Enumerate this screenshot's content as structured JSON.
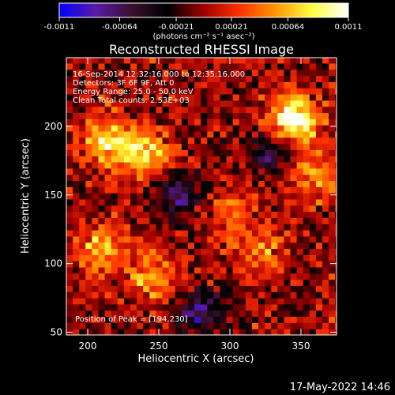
{
  "chart_data": {
    "type": "heatmap",
    "title": "Reconstructed RHESSI Image",
    "xlabel": "Heliocentric X (arcsec)",
    "ylabel": "Heliocentric Y (arcsec)",
    "xlim": [
      185,
      375
    ],
    "ylim": [
      48,
      250
    ],
    "x_ticks": [
      200,
      250,
      300,
      350
    ],
    "y_ticks": [
      50,
      100,
      150,
      200
    ],
    "info_lines": [
      "16-Sep-2014 12:32:16.000 to 12:35:16.000",
      "Detectors: 3F 6F 9F, Att 0",
      "Energy Range: 25.0 - 50.0 keV",
      "Clean     Total counts: 2.53E+03"
    ],
    "peak_label": "Position of Peak = [194,230]",
    "colorbar": {
      "range": [
        -0.0011,
        0.0011
      ],
      "ticks": [
        "-0.0011",
        "-0.00064",
        "-0.00021",
        "0.00021",
        "0.00064",
        "0.0011"
      ],
      "units": "(photons cm⁻² s⁻¹ asec⁻²)",
      "colors": [
        "#0000ff",
        "#5a1aa8",
        "#3a1030",
        "#000000",
        "#a00000",
        "#ff3300",
        "#ff9900",
        "#ffff44",
        "#ffffff"
      ]
    },
    "features": [
      {
        "x": 345,
        "y": 205,
        "value": 0.0011
      },
      {
        "x": 215,
        "y": 190,
        "value": 0.0008
      },
      {
        "x": 240,
        "y": 180,
        "value": 0.0007
      },
      {
        "x": 360,
        "y": 165,
        "value": 0.0006
      },
      {
        "x": 210,
        "y": 110,
        "value": 0.0007
      },
      {
        "x": 245,
        "y": 90,
        "value": 0.0006
      },
      {
        "x": 320,
        "y": 110,
        "value": 0.0005
      },
      {
        "x": 300,
        "y": 140,
        "value": 0.0004
      },
      {
        "x": 265,
        "y": 150,
        "value": -0.0006
      },
      {
        "x": 280,
        "y": 65,
        "value": -0.0007
      },
      {
        "x": 330,
        "y": 180,
        "value": -0.0005
      }
    ]
  },
  "footer": {
    "timestamp": "17-May-2022 14:46"
  }
}
